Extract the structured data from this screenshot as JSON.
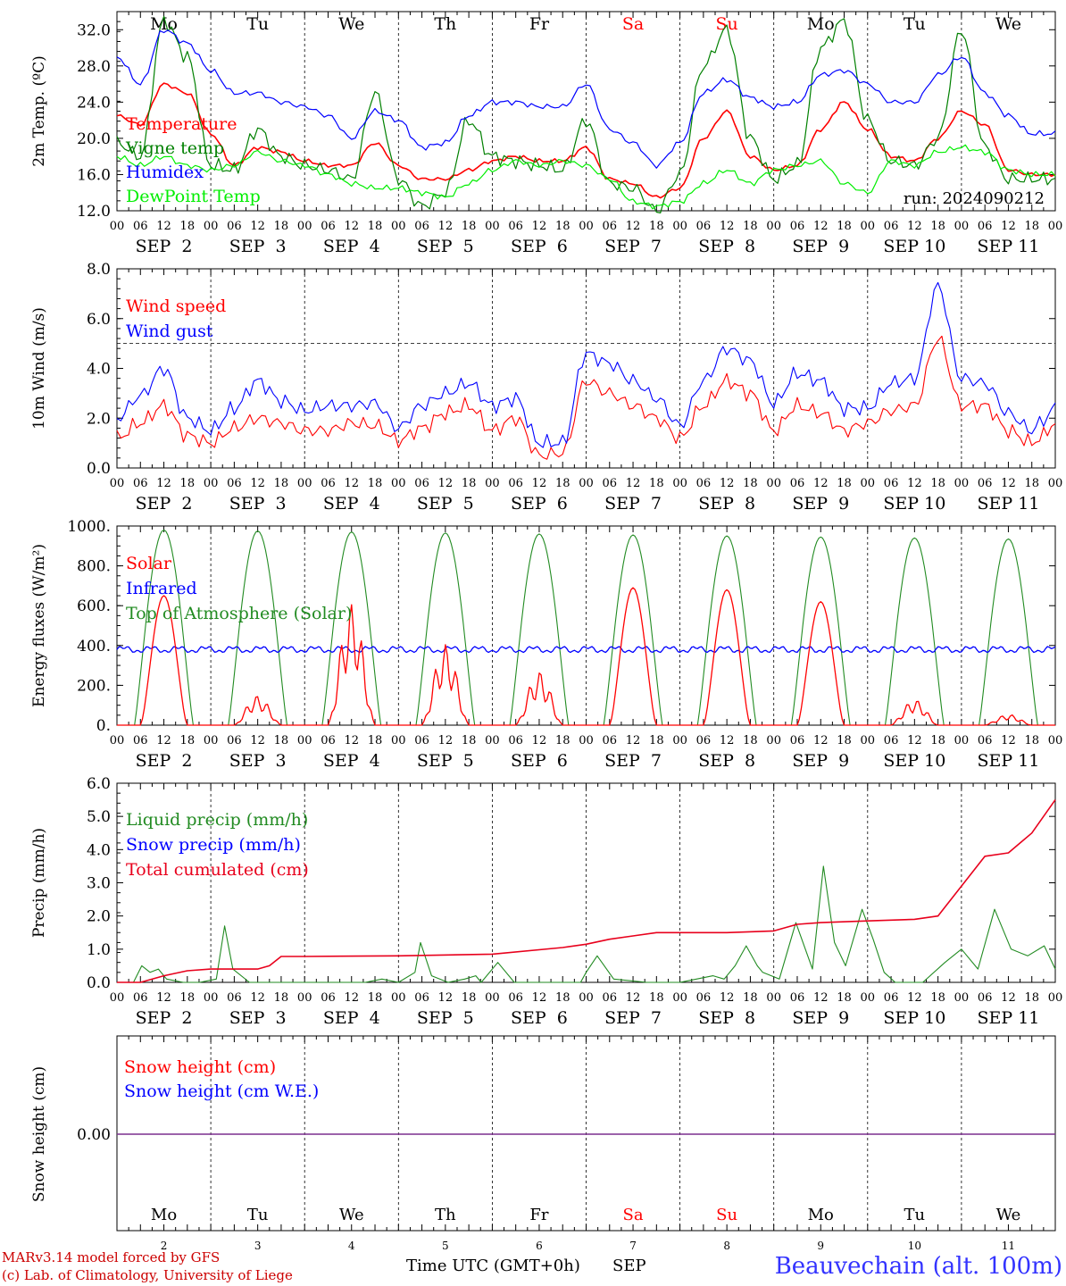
{
  "colors": {
    "temperature": "#ff0000",
    "vigne": "#008000",
    "humidex": "#0000ff",
    "dewpoint": "#00ee00",
    "wind_speed": "#ff0000",
    "wind_gust": "#0000ff",
    "solar": "#ff0000",
    "infrared": "#0000ff",
    "toa": "#228b22",
    "liquid": "#228b22",
    "snow_precip": "#0000ff",
    "cumulated": "#e8001c",
    "snow_cm": "#ff0000",
    "snow_we": "#0000ff",
    "snow_line": "#7b2f8e",
    "weekend": "#ff0000",
    "footer_left": "#cc0000",
    "location": "#3333ff"
  },
  "days": [
    "Mo",
    "Tu",
    "We",
    "Th",
    "Fr",
    "Sa",
    "Su",
    "Mo",
    "Tu",
    "We"
  ],
  "weekend_days": [
    "Sa",
    "Su"
  ],
  "day_numbers": [
    "2",
    "3",
    "4",
    "5",
    "6",
    "7",
    "8",
    "9",
    "10",
    "11"
  ],
  "hour_ticks": [
    "00",
    "06",
    "12",
    "18"
  ],
  "end_tick": "00",
  "date_labels": [
    "SEP  2",
    "SEP  3",
    "SEP  4",
    "SEP  5",
    "SEP  6",
    "SEP  7",
    "SEP  8",
    "SEP  9",
    "SEP 10",
    "SEP 11"
  ],
  "footer": {
    "model": "MARv3.14 model forced by GFS",
    "copyright": "(c) Lab. of Climatology, University of Liege",
    "time_label": "Time UTC (GMT+0h)",
    "month": "SEP",
    "location": "Beauvechain (alt. 100m)"
  },
  "chart_data": [
    {
      "type": "line",
      "ylabel": "2m Temp. (oC)",
      "ylim": [
        12,
        34
      ],
      "yticks": [
        "12.0",
        "16.0",
        "20.0",
        "24.0",
        "28.0",
        "32.0"
      ],
      "show_days": true,
      "annotation": "run: 2024090212",
      "legend": [
        "Temperature",
        "Vigne temp",
        "Humidex",
        "DewPoint Temp"
      ],
      "series": [
        {
          "name": "Temperature",
          "color_key": "temperature",
          "x": [
            0,
            6,
            12,
            18,
            24,
            30,
            36,
            42,
            48,
            54,
            60,
            66,
            72,
            78,
            84,
            90,
            96,
            102,
            108,
            114,
            120,
            126,
            132,
            138,
            144,
            150,
            156,
            162,
            168,
            174,
            180,
            186,
            192,
            198,
            204,
            210,
            216,
            222,
            228,
            234
          ],
          "y": [
            22.5,
            21.5,
            26,
            25,
            20.5,
            17,
            19,
            18.5,
            17.5,
            17,
            17,
            19.5,
            17,
            15.5,
            15.5,
            16.5,
            17.5,
            18,
            17.5,
            17.5,
            19,
            15.5,
            15,
            13.5,
            14.5,
            20,
            23,
            18,
            16.5,
            17,
            21,
            24,
            21,
            18,
            17.5,
            20,
            23,
            21.5,
            16.5,
            16
          ]
        },
        {
          "name": "Vigne temp",
          "color_key": "vigne",
          "x": [
            0,
            6,
            12,
            18,
            24,
            30,
            36,
            42,
            48,
            54,
            60,
            66,
            72,
            78,
            84,
            90,
            96,
            102,
            108,
            114,
            120,
            126,
            132,
            138,
            144,
            150,
            156,
            162,
            168,
            174,
            180,
            186,
            192,
            198,
            204,
            210,
            216,
            222,
            228,
            234
          ],
          "y": [
            19.5,
            18,
            33,
            29,
            17,
            16.5,
            21,
            18,
            17,
            16.5,
            15.5,
            25,
            15.5,
            12.5,
            14,
            22,
            18,
            17.5,
            17,
            16.5,
            22,
            15,
            14.5,
            12,
            16,
            28,
            32,
            20,
            15.5,
            17,
            30,
            33,
            22,
            17.5,
            17,
            20,
            32,
            19,
            15.5,
            15.5
          ]
        },
        {
          "name": "Humidex",
          "color_key": "humidex",
          "x": [
            0,
            6,
            12,
            18,
            24,
            30,
            36,
            42,
            48,
            54,
            60,
            66,
            72,
            78,
            84,
            90,
            96,
            102,
            108,
            114,
            120,
            126,
            132,
            138,
            144,
            150,
            156,
            162,
            168,
            174,
            180,
            186,
            192,
            198,
            204,
            210,
            216,
            222,
            228,
            234
          ],
          "y": [
            29,
            26,
            32,
            30.5,
            27.5,
            25,
            25,
            24,
            23.5,
            22.5,
            20,
            23,
            22,
            19,
            19.5,
            22.5,
            24,
            24,
            23.5,
            23.5,
            26,
            21,
            19.5,
            17,
            19.5,
            25,
            26.5,
            24.5,
            23.5,
            24,
            27,
            27.5,
            26,
            24,
            24,
            27,
            29,
            25,
            22.5,
            20.5
          ]
        },
        {
          "name": "DewPoint Temp",
          "color_key": "dewpoint",
          "x": [
            0,
            6,
            12,
            18,
            24,
            30,
            36,
            42,
            48,
            54,
            60,
            66,
            72,
            78,
            84,
            90,
            96,
            102,
            108,
            114,
            120,
            126,
            132,
            138,
            144,
            150,
            156,
            162,
            168,
            174,
            180,
            186,
            192,
            198,
            204,
            210,
            216,
            222,
            228,
            234
          ],
          "y": [
            18,
            17,
            18,
            17,
            16.5,
            17,
            18.5,
            17.5,
            17,
            16,
            15,
            14.5,
            14.5,
            14,
            13.5,
            15,
            16.5,
            17.5,
            17,
            17.5,
            17,
            15.5,
            13,
            12.5,
            13,
            15,
            16.5,
            15,
            16.5,
            17,
            17.5,
            15,
            14,
            17.5,
            17,
            18.5,
            19,
            18.5,
            16.5,
            16
          ]
        }
      ]
    },
    {
      "type": "line",
      "ylabel": "10m Wind (m/s)",
      "ylim": [
        0,
        8
      ],
      "yticks": [
        "0.0",
        "2.0",
        "4.0",
        "6.0",
        "8.0"
      ],
      "reference_line": 5,
      "legend": [
        "Wind speed",
        "Wind gust"
      ],
      "series": [
        {
          "name": "Wind speed",
          "color_key": "wind_speed",
          "x": [
            0,
            6,
            12,
            18,
            24,
            30,
            36,
            42,
            48,
            54,
            60,
            66,
            72,
            78,
            84,
            90,
            96,
            102,
            108,
            114,
            120,
            126,
            132,
            138,
            144,
            150,
            156,
            162,
            168,
            174,
            180,
            186,
            192,
            198,
            204,
            210,
            216,
            222,
            228,
            234
          ],
          "y": [
            1.2,
            1.8,
            2.5,
            1.3,
            1,
            1.6,
            2,
            1.8,
            1.5,
            1.5,
            1.8,
            1.7,
            1.1,
            1.6,
            2.2,
            2.5,
            1.5,
            2,
            0.5,
            0.6,
            3.5,
            3,
            2.5,
            2,
            1.2,
            2.5,
            3.5,
            3,
            1.5,
            2.5,
            2.2,
            1.5,
            1.8,
            2.3,
            2.5,
            5.2,
            2.5,
            2.5,
            1.5,
            1
          ],
          "x2": [
            236,
            240
          ],
          "y2": [
            1.2,
            1.8
          ]
        },
        {
          "name": "Wind gust",
          "color_key": "wind_gust",
          "x": [
            0,
            6,
            12,
            18,
            24,
            30,
            36,
            42,
            48,
            54,
            60,
            66,
            72,
            78,
            84,
            90,
            96,
            102,
            108,
            114,
            120,
            126,
            132,
            138,
            144,
            150,
            156,
            162,
            168,
            174,
            180,
            186,
            192,
            198,
            204,
            210,
            216,
            222,
            228,
            234
          ],
          "y": [
            2,
            2.9,
            4,
            2,
            1.5,
            2.4,
            3.5,
            2.7,
            2.3,
            2.5,
            2.5,
            2.6,
            1.6,
            2.5,
            3,
            3.4,
            2.5,
            2.8,
            1,
            1,
            4.6,
            4.2,
            3.5,
            2.8,
            1.7,
            3.5,
            4.8,
            4.3,
            2.6,
            3.8,
            3.5,
            2.4,
            2.4,
            3.4,
            3.6,
            7.3,
            3.6,
            3.4,
            2.2,
            1.5
          ],
          "x2": [
            236,
            240
          ],
          "y2": [
            1.8,
            2.4
          ]
        }
      ]
    },
    {
      "type": "line",
      "ylabel": "Energy fluxes (W/m2)",
      "ylim": [
        0,
        1000
      ],
      "yticks": [
        "0.",
        "200.",
        "400.",
        "600.",
        "800.",
        "1000."
      ],
      "legend": [
        "Solar",
        "Infrared",
        "Top of Atmosphere (Solar)"
      ],
      "toa_peaks": [
        980,
        975,
        970,
        965,
        960,
        955,
        950,
        945,
        940,
        935
      ],
      "solar_peaks": [
        650,
        110,
        450,
        300,
        200,
        690,
        680,
        620,
        95,
        40
      ],
      "infrared_level": 380
    },
    {
      "type": "line",
      "ylabel": "Precip (mm/h)",
      "ylim": [
        0,
        6
      ],
      "yticks": [
        "0.0",
        "1.0",
        "2.0",
        "3.0",
        "4.0",
        "5.0",
        "6.0"
      ],
      "legend": [
        "Liquid precip (mm/h)",
        "Snow precip (mm/h)",
        "Total cumulated (cm)"
      ],
      "series": [
        {
          "name": "Liquid precip (mm/h)",
          "color_key": "liquid",
          "x": [
            0,
            6,
            9,
            12,
            15,
            18,
            24,
            30,
            36,
            39,
            42,
            48,
            72,
            90,
            96,
            102,
            108,
            110,
            114,
            120,
            126,
            130,
            132,
            138,
            144,
            156,
            168,
            170,
            174,
            180,
            192,
            198,
            204,
            210,
            216,
            220,
            224,
            228,
            232,
            234,
            240,
            246,
            252,
            256,
            260,
            264,
            270,
            274,
            278,
            282,
            288,
            292,
            300,
            306,
            312,
            318,
            324,
            330,
            336,
            340
          ],
          "y": [
            0,
            0,
            0.5,
            0.3,
            0.4,
            0.1,
            0,
            0,
            0.1,
            1.7,
            0.4,
            0,
            0,
            0,
            0.1,
            0,
            0.3,
            1.2,
            0.2,
            0,
            0.1,
            0.2,
            0,
            0.6,
            0,
            0,
            0,
            0.3,
            0.8,
            0.1,
            0,
            0,
            0,
            0.1,
            0.2,
            0.1,
            0.5,
            1.1,
            0.5,
            0.3,
            0.1,
            1.8,
            0.4,
            3.5,
            1.2,
            0.5,
            2.2,
            1.3,
            0.3,
            0,
            0,
            0,
            0.6,
            1,
            0.4,
            2.2,
            1,
            0.8,
            1.1,
            0.4
          ]
        },
        {
          "name": "Total cumulated (cm)",
          "color_key": "cumulated",
          "x": [
            0,
            6,
            12,
            18,
            24,
            30,
            36,
            39,
            42,
            48,
            72,
            96,
            114,
            120,
            126,
            132,
            138,
            144,
            150,
            156,
            168,
            174,
            180,
            192,
            204,
            210,
            216,
            222,
            228,
            234,
            240
          ],
          "y": [
            0,
            0,
            0.2,
            0.35,
            0.4,
            0.4,
            0.4,
            0.5,
            0.78,
            0.78,
            0.8,
            0.85,
            1.05,
            1.15,
            1.3,
            1.4,
            1.5,
            1.5,
            1.5,
            1.5,
            1.55,
            1.75,
            1.8,
            1.85,
            1.9,
            2,
            2.9,
            3.8,
            3.9,
            4.5,
            5.5
          ]
        }
      ]
    },
    {
      "type": "line",
      "ylabel": "Snow height (cm)",
      "yticks": [
        "0.00"
      ],
      "legend": [
        "Snow height (cm)",
        "Snow height (cm W.E.)"
      ],
      "snow_value": 0
    }
  ]
}
